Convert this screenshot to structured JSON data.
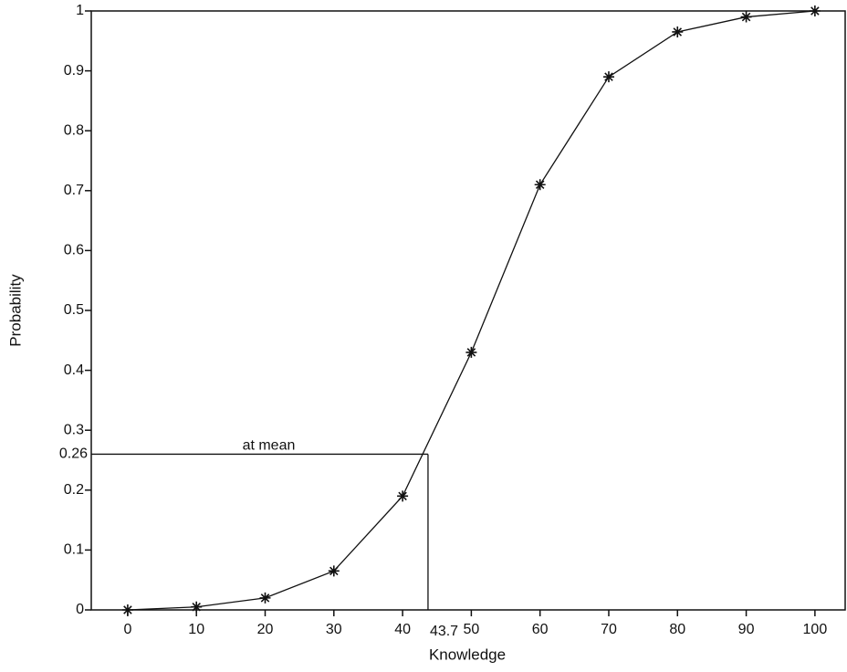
{
  "chart_data": {
    "type": "line",
    "x_label": "Knowledge",
    "y_label": "Probability",
    "x": [
      0,
      10,
      20,
      30,
      40,
      50,
      60,
      70,
      80,
      90,
      100
    ],
    "series": [
      {
        "color": "#111111",
        "marker": "asterisk",
        "values": [
          0,
          0.005,
          0.02,
          0.065,
          0.19,
          0.43,
          0.71,
          0.89,
          0.965,
          0.99,
          1.0
        ]
      }
    ],
    "xlim": [
      -5.3,
      104.4
    ],
    "ylim": [
      0,
      1
    ],
    "xticks": [
      0,
      10,
      20,
      30,
      40,
      50,
      60,
      70,
      80,
      90,
      100
    ],
    "yticks": [
      0,
      0.1,
      0.2,
      0.3,
      0.4,
      0.5,
      0.6,
      0.7,
      0.8,
      0.9,
      1
    ],
    "mean": {
      "label": "at mean",
      "x": 43.7,
      "y": 0.26
    },
    "grid": false
  }
}
